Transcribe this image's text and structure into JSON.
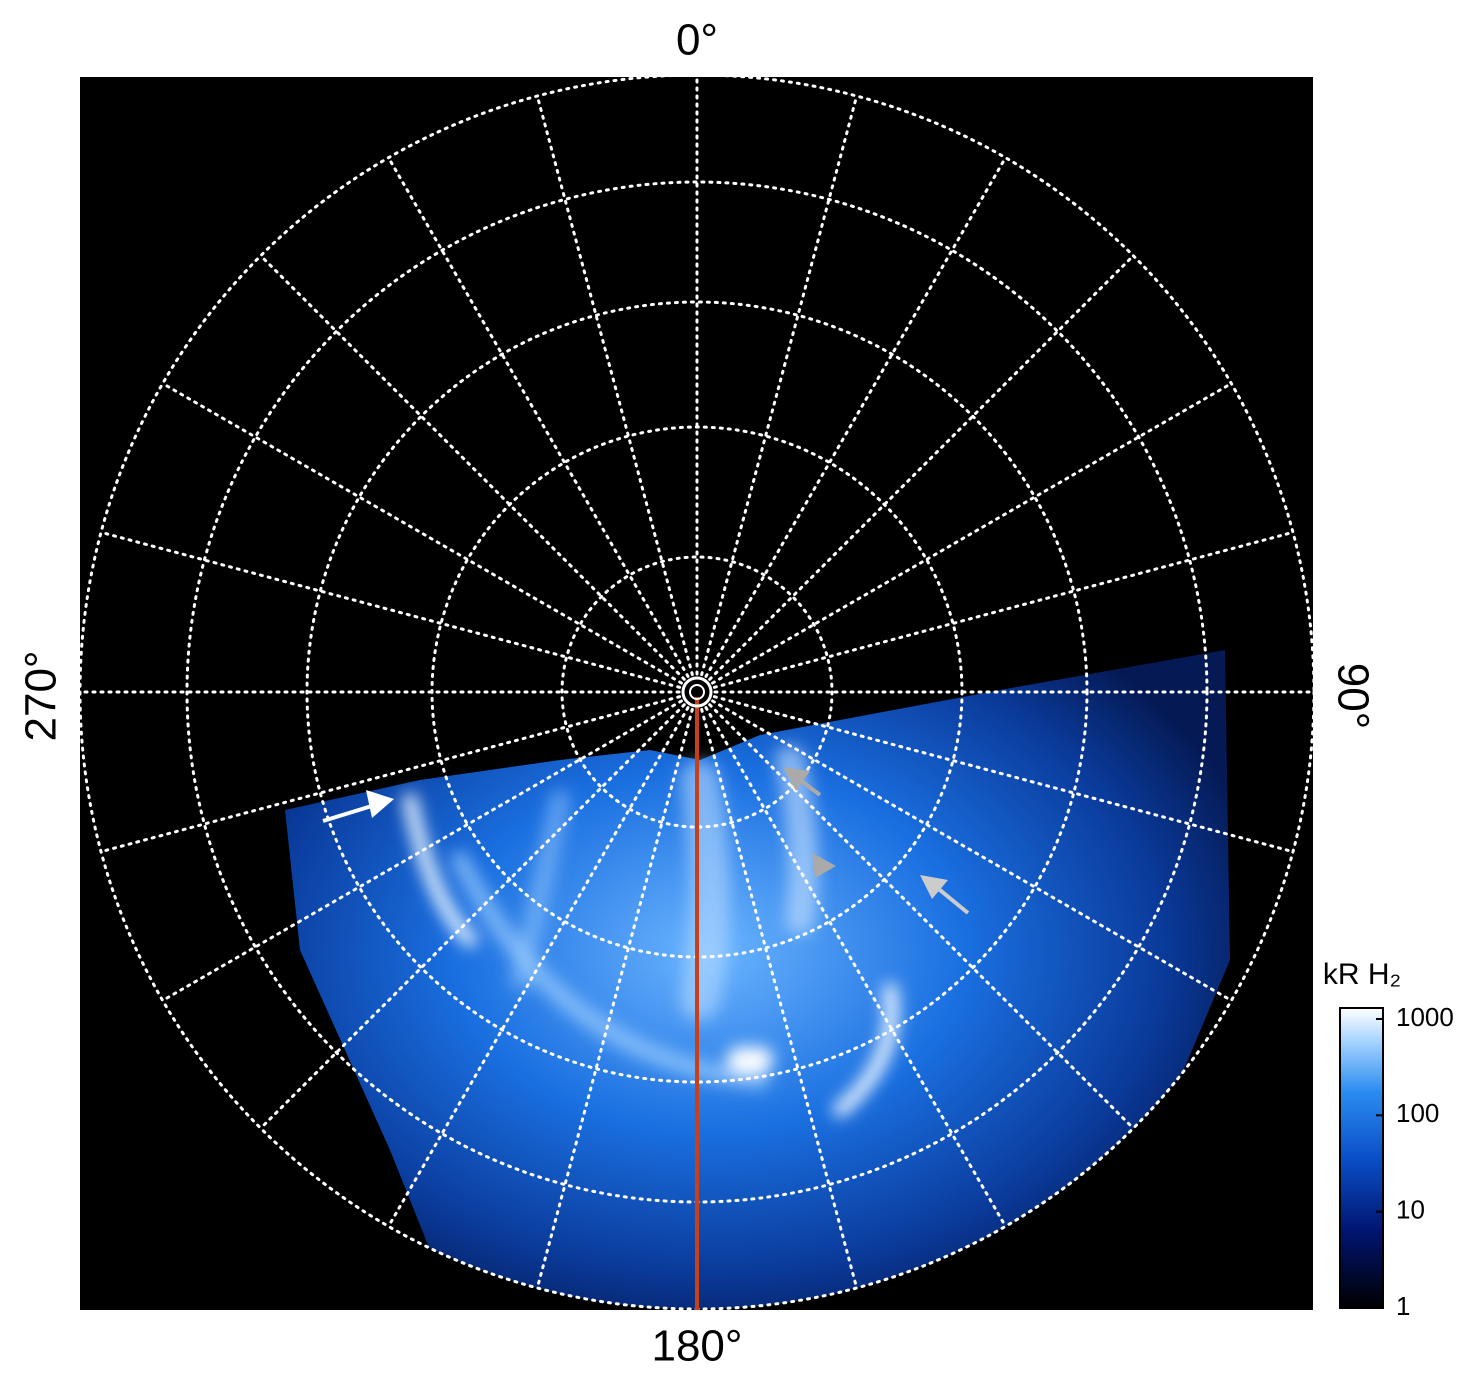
{
  "chart_data": {
    "type": "polar-image",
    "angle_ticks": [
      {
        "value": 0,
        "label": "0°"
      },
      {
        "value": 90,
        "label": "90°"
      },
      {
        "value": 180,
        "label": "180°"
      },
      {
        "value": 270,
        "label": "270°"
      }
    ],
    "colorbar": {
      "title": "kR H₂",
      "log": true,
      "lim": [
        1,
        1300
      ],
      "ticks": [
        1,
        10,
        100,
        1000
      ]
    },
    "grid": true
  }
}
